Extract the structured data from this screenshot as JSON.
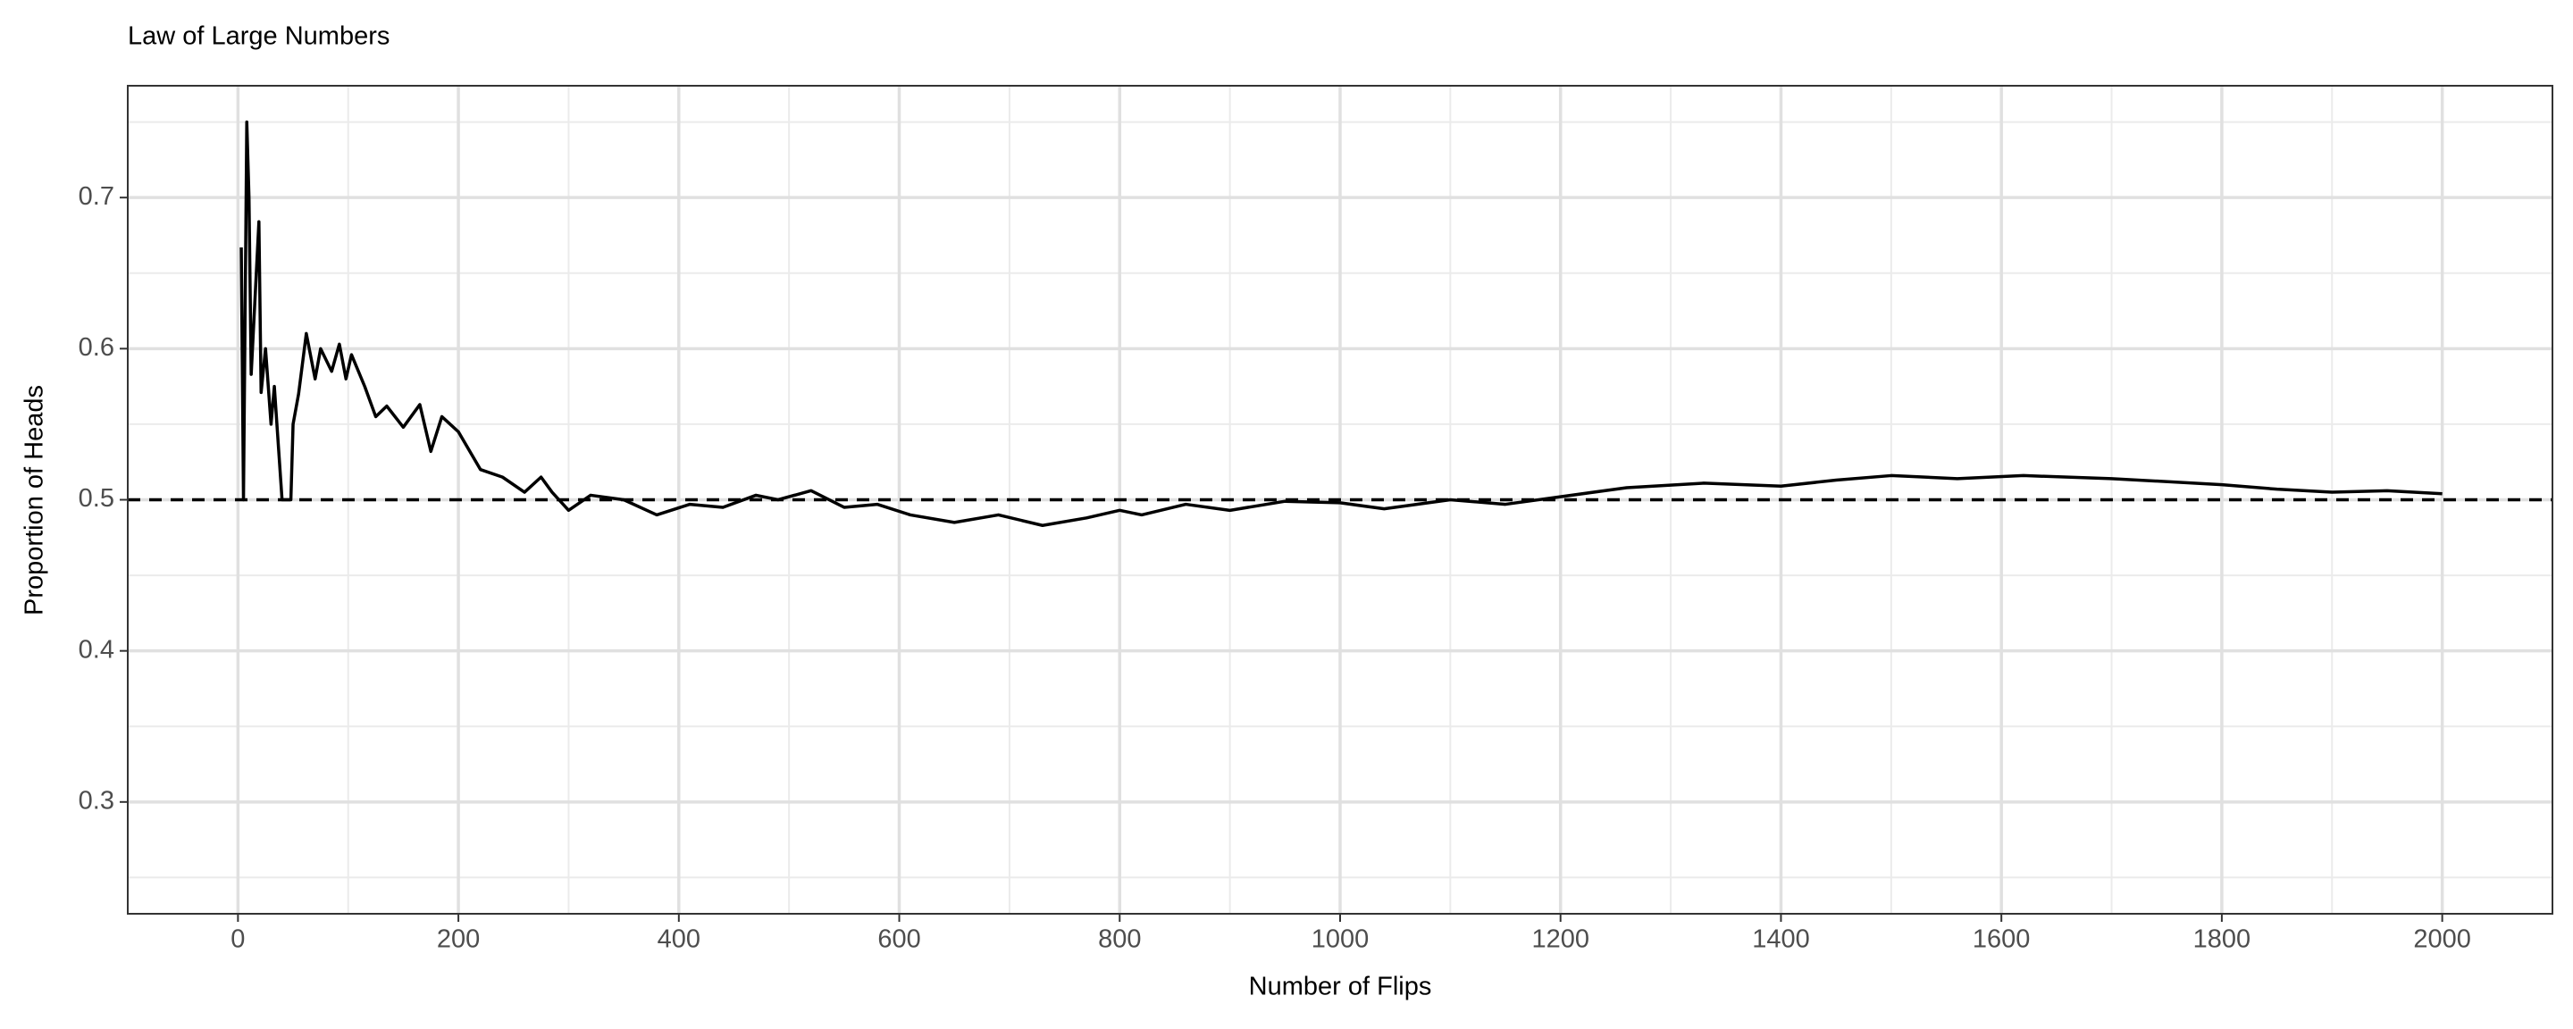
{
  "chart_data": {
    "type": "line",
    "title": "Law of Large Numbers",
    "x_label": "Number of Flips",
    "y_label": "Proportion of Heads",
    "xlim": [
      -100,
      2100
    ],
    "ylim": [
      0.226,
      0.774
    ],
    "xticks": [
      0,
      200,
      400,
      600,
      800,
      1000,
      1200,
      1400,
      1600,
      1800,
      2000
    ],
    "yticks": [
      0.3,
      0.4,
      0.5,
      0.6,
      0.7
    ],
    "x_minor_ticks": [
      -100,
      100,
      300,
      500,
      700,
      900,
      1100,
      1300,
      1500,
      1700,
      1900,
      2100
    ],
    "y_minor_ticks": [
      0.25,
      0.35,
      0.45,
      0.55,
      0.65,
      0.75
    ],
    "grid": true,
    "hline": 0.5,
    "hline_color": "#000000",
    "series": [
      {
        "color": "#000000",
        "x": [
          3,
          5,
          8,
          10,
          12,
          19,
          21,
          25,
          30,
          33,
          40,
          48,
          50,
          55,
          62,
          70,
          75,
          85,
          92,
          98,
          103,
          115,
          125,
          135,
          150,
          165,
          175,
          185,
          200,
          220,
          240,
          260,
          275,
          285,
          300,
          320,
          350,
          380,
          410,
          440,
          470,
          490,
          520,
          550,
          580,
          610,
          650,
          690,
          730,
          770,
          800,
          820,
          860,
          900,
          950,
          1000,
          1040,
          1100,
          1150,
          1200,
          1260,
          1330,
          1400,
          1450,
          1500,
          1560,
          1620,
          1700,
          1800,
          1850,
          1900,
          1950,
          2000
        ],
        "values": [
          0.667,
          0.5,
          0.75,
          0.7,
          0.583,
          0.684,
          0.571,
          0.6,
          0.55,
          0.575,
          0.5,
          0.5,
          0.55,
          0.57,
          0.61,
          0.58,
          0.6,
          0.585,
          0.603,
          0.58,
          0.596,
          0.575,
          0.555,
          0.562,
          0.548,
          0.563,
          0.532,
          0.555,
          0.545,
          0.52,
          0.515,
          0.505,
          0.515,
          0.505,
          0.493,
          0.503,
          0.5,
          0.49,
          0.497,
          0.495,
          0.503,
          0.5,
          0.506,
          0.495,
          0.497,
          0.49,
          0.485,
          0.49,
          0.483,
          0.488,
          0.493,
          0.49,
          0.497,
          0.493,
          0.499,
          0.498,
          0.494,
          0.5,
          0.497,
          0.502,
          0.508,
          0.511,
          0.509,
          0.513,
          0.516,
          0.514,
          0.516,
          0.514,
          0.51,
          0.507,
          0.505,
          0.506,
          0.504
        ]
      }
    ]
  }
}
